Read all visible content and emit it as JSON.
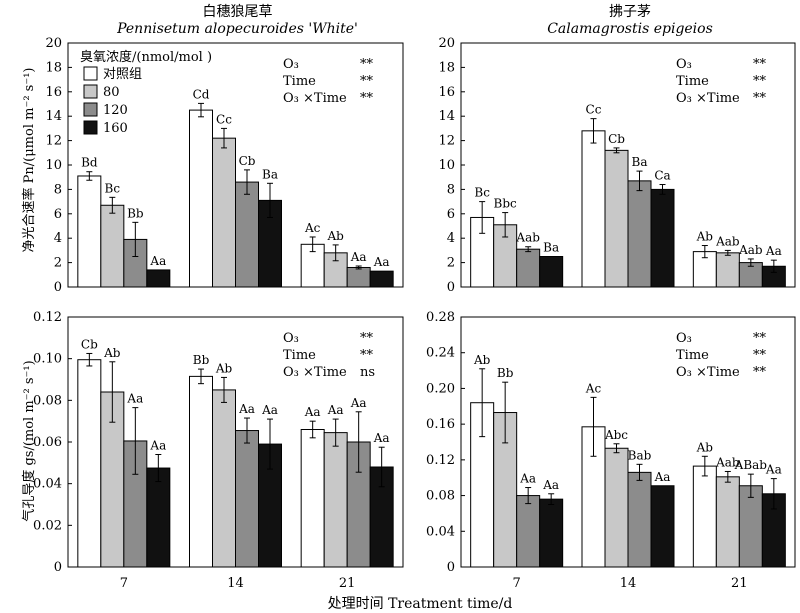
{
  "figure": {
    "x_axis_label": "处理时间 Treatment time/d",
    "legend_title": "臭氧浓度/(nmol/mol )",
    "legend_entries": [
      "对照组",
      "80",
      "120",
      "160"
    ],
    "series_colors": [
      "#ffffff",
      "#c8c8c8",
      "#8c8c8c",
      "#111111"
    ]
  },
  "chart_data": [
    {
      "type": "bar",
      "panel": "top-left",
      "title": "白穗狼尾草",
      "subtitle": "Pennisetum alopecuroides 'White'",
      "ylabel": "净光合速率 Pn/(μmol m⁻² s⁻¹)",
      "ylim": [
        0,
        20
      ],
      "yticks": [
        "0",
        "2",
        "4",
        "6",
        "8",
        "10",
        "12",
        "14",
        "16",
        "18",
        "20"
      ],
      "categories": [
        "7",
        "14",
        "21"
      ],
      "series": [
        {
          "name": "对照组",
          "values": [
            9.1,
            14.5,
            3.5
          ],
          "errors": [
            0.35,
            0.55,
            0.6
          ],
          "labels": [
            "Bd",
            "Cd",
            "Ac"
          ]
        },
        {
          "name": "80",
          "values": [
            6.7,
            12.2,
            2.8
          ],
          "errors": [
            0.65,
            0.8,
            0.65
          ],
          "labels": [
            "Bc",
            "Cc",
            "Ab"
          ]
        },
        {
          "name": "120",
          "values": [
            3.9,
            8.6,
            1.6
          ],
          "errors": [
            1.4,
            1.0,
            0.12
          ],
          "labels": [
            "Bb",
            "Cb",
            "Aa"
          ]
        },
        {
          "name": "160",
          "values": [
            1.4,
            7.1,
            1.3
          ],
          "errors": [
            0,
            1.4,
            0
          ],
          "labels": [
            "Aa",
            "Ba",
            "Aa"
          ]
        }
      ],
      "significance": [
        {
          "factor": "O₃",
          "value": "**"
        },
        {
          "factor": "Time",
          "value": "**"
        },
        {
          "factor": "O₃ ×Time",
          "value": "**"
        }
      ]
    },
    {
      "type": "bar",
      "panel": "top-right",
      "title": "拂子茅",
      "subtitle": "Calamagrostis epigeios",
      "ylabel": "",
      "ylim": [
        0,
        20
      ],
      "yticks": [
        "0",
        "2",
        "4",
        "6",
        "8",
        "10",
        "12",
        "14",
        "16",
        "18",
        "20"
      ],
      "categories": [
        "7",
        "14",
        "21"
      ],
      "series": [
        {
          "name": "对照组",
          "values": [
            5.7,
            12.8,
            2.9
          ],
          "errors": [
            1.3,
            1.0,
            0.5
          ],
          "labels": [
            "Bc",
            "Cc",
            "Ab"
          ]
        },
        {
          "name": "80",
          "values": [
            5.1,
            11.2,
            2.8
          ],
          "errors": [
            1.0,
            0.2,
            0.2
          ],
          "labels": [
            "Bbc",
            "Cb",
            "Aab"
          ]
        },
        {
          "name": "120",
          "values": [
            3.1,
            8.7,
            2.0
          ],
          "errors": [
            0.2,
            0.8,
            0.3
          ],
          "labels": [
            "Aab",
            "Ba",
            "Aab"
          ]
        },
        {
          "name": "160",
          "values": [
            2.5,
            8.0,
            1.7
          ],
          "errors": [
            0,
            0.4,
            0.5
          ],
          "labels": [
            "Ba",
            "Ca",
            "Aa"
          ]
        }
      ],
      "significance": [
        {
          "factor": "O₃",
          "value": "**"
        },
        {
          "factor": "Time",
          "value": "**"
        },
        {
          "factor": "O₃ ×Time",
          "value": "**"
        }
      ]
    },
    {
      "type": "bar",
      "panel": "bottom-left",
      "title": "",
      "subtitle": "",
      "ylabel": "气孔导度 gs/(mol m⁻² s⁻¹)",
      "ylim": [
        0,
        0.12
      ],
      "yticks": [
        "0",
        "0.02",
        "0.04",
        "0.06",
        "0.08",
        "0.10",
        "0.12"
      ],
      "categories": [
        "7",
        "14",
        "21"
      ],
      "series": [
        {
          "name": "对照组",
          "values": [
            0.0995,
            0.0915,
            0.066
          ],
          "errors": [
            0.003,
            0.0035,
            0.004
          ],
          "labels": [
            "Cb",
            "Bb",
            "Aa"
          ]
        },
        {
          "name": "80",
          "values": [
            0.084,
            0.085,
            0.0645
          ],
          "errors": [
            0.0145,
            0.006,
            0.0065
          ],
          "labels": [
            "Ab",
            "Ab",
            "Aa"
          ]
        },
        {
          "name": "120",
          "values": [
            0.0605,
            0.0655,
            0.06
          ],
          "errors": [
            0.016,
            0.006,
            0.0145
          ],
          "labels": [
            "Aa",
            "Aa",
            "Aa"
          ]
        },
        {
          "name": "160",
          "values": [
            0.0475,
            0.059,
            0.048
          ],
          "errors": [
            0.0065,
            0.012,
            0.0095
          ],
          "labels": [
            "Aa",
            "Aa",
            "Aa"
          ]
        }
      ],
      "significance": [
        {
          "factor": "O₃",
          "value": "**"
        },
        {
          "factor": "Time",
          "value": "**"
        },
        {
          "factor": "O₃ ×Time",
          "value": "ns"
        }
      ]
    },
    {
      "type": "bar",
      "panel": "bottom-right",
      "title": "",
      "subtitle": "",
      "ylabel": "",
      "ylim": [
        0,
        0.28
      ],
      "yticks": [
        "0",
        "0.04",
        "0.08",
        "0.12",
        "0.16",
        "0.20",
        "0.24",
        "0.28"
      ],
      "categories": [
        "7",
        "14",
        "21"
      ],
      "series": [
        {
          "name": "对照组",
          "values": [
            0.184,
            0.157,
            0.113
          ],
          "errors": [
            0.038,
            0.033,
            0.011
          ],
          "labels": [
            "Ab",
            "Ac",
            "Ab"
          ]
        },
        {
          "name": "80",
          "values": [
            0.173,
            0.133,
            0.101
          ],
          "errors": [
            0.034,
            0.005,
            0.006
          ],
          "labels": [
            "Bb",
            "Abc",
            "Aab"
          ]
        },
        {
          "name": "120",
          "values": [
            0.08,
            0.106,
            0.091
          ],
          "errors": [
            0.009,
            0.009,
            0.013
          ],
          "labels": [
            "Aa",
            "Bab",
            "ABab"
          ]
        },
        {
          "name": "160",
          "values": [
            0.076,
            0.091,
            0.082
          ],
          "errors": [
            0.006,
            0,
            0.017
          ],
          "labels": [
            "Aa",
            "Aa",
            "Aa"
          ]
        }
      ],
      "significance": [
        {
          "factor": "O₃",
          "value": "**"
        },
        {
          "factor": "Time",
          "value": "**"
        },
        {
          "factor": "O₃ ×Time",
          "value": "**"
        }
      ]
    }
  ]
}
